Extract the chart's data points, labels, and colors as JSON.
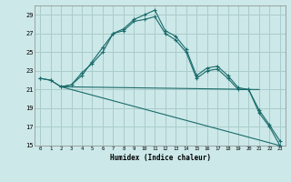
{
  "title": "",
  "xlabel": "Humidex (Indice chaleur)",
  "bg_color": "#cce8e8",
  "grid_color": "#aacccc",
  "line_color": "#1a6b6b",
  "xlim": [
    -0.5,
    23.5
  ],
  "ylim": [
    15,
    30
  ],
  "yticks": [
    15,
    17,
    19,
    21,
    23,
    25,
    27,
    29
  ],
  "xticks": [
    0,
    1,
    2,
    3,
    4,
    5,
    6,
    7,
    8,
    9,
    10,
    11,
    12,
    13,
    14,
    15,
    16,
    17,
    18,
    19,
    20,
    21,
    22,
    23
  ],
  "line1_x": [
    0,
    1,
    2,
    3,
    4,
    5,
    6,
    7,
    8,
    9,
    10,
    11,
    12,
    13,
    14,
    15,
    16,
    17,
    18,
    19,
    20,
    21,
    22,
    23
  ],
  "line1_y": [
    22.2,
    22.0,
    21.3,
    21.5,
    22.8,
    23.8,
    25.0,
    27.0,
    27.5,
    28.5,
    29.0,
    29.5,
    27.3,
    26.7,
    25.3,
    22.5,
    23.3,
    23.5,
    22.5,
    21.2,
    21.0,
    18.8,
    17.2,
    15.5
  ],
  "line2_x": [
    0,
    1,
    2,
    3,
    4,
    5,
    6,
    7,
    8,
    9,
    10,
    11,
    12,
    13,
    14,
    15,
    16,
    17,
    18,
    19,
    20,
    21,
    22,
    23
  ],
  "line2_y": [
    22.2,
    22.0,
    21.3,
    21.5,
    22.5,
    24.0,
    25.5,
    27.0,
    27.3,
    28.3,
    28.5,
    28.8,
    27.0,
    26.3,
    25.0,
    22.2,
    23.0,
    23.2,
    22.2,
    21.0,
    21.0,
    18.5,
    17.0,
    15.0
  ],
  "line3_x": [
    2,
    21
  ],
  "line3_y": [
    21.3,
    21.0
  ],
  "line4_x": [
    2,
    23
  ],
  "line4_y": [
    21.3,
    15.0
  ]
}
